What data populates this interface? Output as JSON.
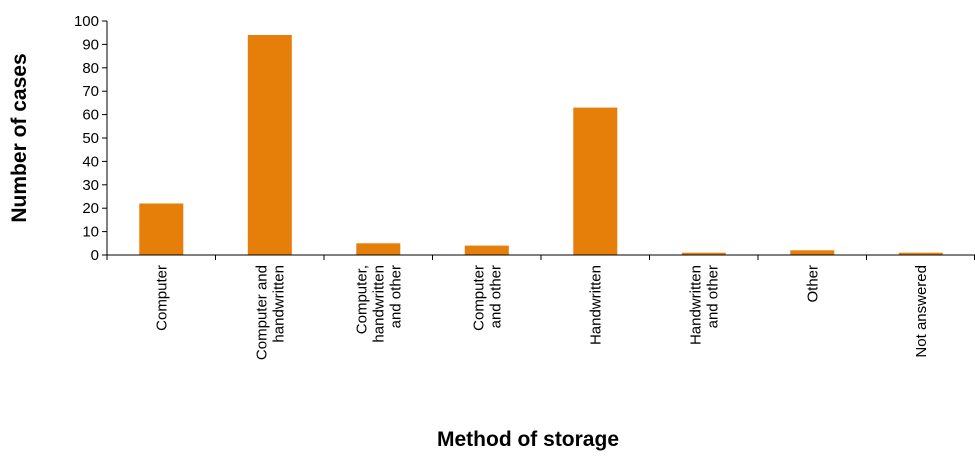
{
  "chart_data": {
    "type": "bar",
    "title": "",
    "xlabel": "Method of storage",
    "ylabel": "Number of cases",
    "ylim": [
      0,
      100
    ],
    "yticks": [
      0,
      10,
      20,
      30,
      40,
      50,
      60,
      70,
      80,
      90,
      100
    ],
    "grid": false,
    "legend": "none",
    "bar_color": "#E67E0A",
    "categories": [
      [
        "Computer"
      ],
      [
        "Computer and",
        "handwritten"
      ],
      [
        "Computer,",
        "handwritten",
        "and other"
      ],
      [
        "Computer",
        "and other"
      ],
      [
        "Handwritten"
      ],
      [
        "Handwritten",
        "and other"
      ],
      [
        "Other"
      ],
      [
        "Not answered"
      ]
    ],
    "values": [
      22,
      94,
      5,
      4,
      63,
      1,
      2,
      1
    ]
  }
}
